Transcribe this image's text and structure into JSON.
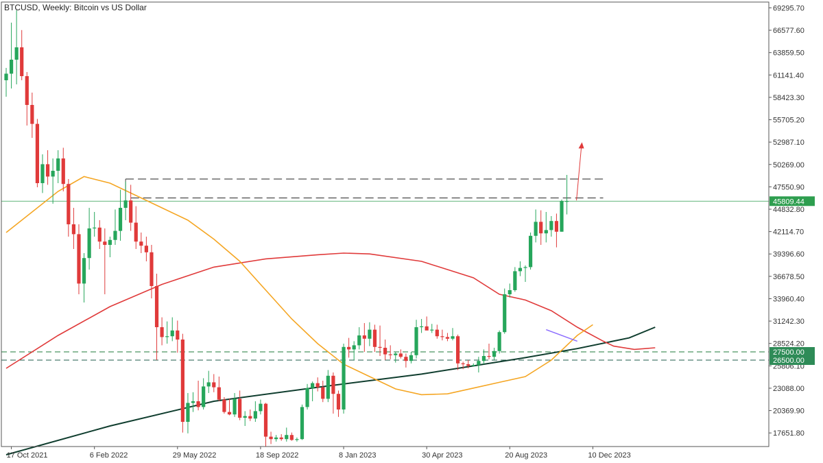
{
  "header": {
    "symbol": "BTCUSD",
    "timeframe": "Weekly:",
    "description": "Bitcoin vs US Dollar"
  },
  "chart_data": {
    "type": "candlestick",
    "ylim": [
      16000,
      70000
    ],
    "y_ticks": [
      "69295.70",
      "66577.60",
      "63859.50",
      "61141.40",
      "58423.30",
      "55705.20",
      "52987.10",
      "50269.00",
      "47550.90",
      "44832.80",
      "42114.70",
      "39396.60",
      "36678.50",
      "33960.40",
      "31242.30",
      "28524.20",
      "25806.10",
      "23088.00",
      "20369.90",
      "17651.80"
    ],
    "x_tick_labels": [
      "17 Oct 2021",
      "6 Feb 2022",
      "29 May 2022",
      "18 Sep 2022",
      "8 Jan 2023",
      "30 Apr 2023",
      "20 Aug 2023",
      "10 Dec 2023"
    ],
    "current_price": "45809.44",
    "levels": [
      {
        "label": "27500.00",
        "value": 27500,
        "color": "#1e7a3a",
        "style": "dashed"
      },
      {
        "label": "26500.00",
        "value": 26500,
        "color": "#1e5a4a",
        "style": "dashed"
      }
    ],
    "resistance_lines": [
      48500,
      46200
    ],
    "colors": {
      "bull": "#26a65b",
      "bear": "#e03a3a",
      "ma_fast": "#f5a623",
      "ma_mid": "#e03a3a",
      "ma_slow": "#0f3d2e",
      "badge_price": "#2e9e4f",
      "badge_level": "#2e8b57",
      "arrow": "#e03a3a",
      "channel": "#8b6cff"
    },
    "candles": [
      [
        60500,
        62000,
        58500,
        61300
      ],
      [
        61300,
        67500,
        59500,
        63000
      ],
      [
        63000,
        69000,
        60000,
        64500
      ],
      [
        64500,
        66600,
        60500,
        61000
      ],
      [
        61000,
        61500,
        55000,
        57500
      ],
      [
        57500,
        59000,
        53500,
        55200
      ],
      [
        55200,
        55800,
        47500,
        48000
      ],
      [
        48000,
        51500,
        46800,
        50300
      ],
      [
        50300,
        52000,
        47800,
        48800
      ],
      [
        48800,
        51000,
        45500,
        49500
      ],
      [
        49500,
        52000,
        48000,
        51000
      ],
      [
        51000,
        52300,
        47000,
        47900
      ],
      [
        47900,
        48500,
        41500,
        43000
      ],
      [
        43000,
        45000,
        40000,
        41800
      ],
      [
        41800,
        43000,
        34500,
        35800
      ],
      [
        35800,
        39500,
        33500,
        38900
      ],
      [
        38900,
        45000,
        37500,
        42500
      ],
      [
        42500,
        44500,
        41500,
        42600
      ],
      [
        42600,
        43500,
        40000,
        40900
      ],
      [
        40900,
        42500,
        34500,
        40500
      ],
      [
        40500,
        41500,
        39000,
        41100
      ],
      [
        41100,
        44800,
        40500,
        42200
      ],
      [
        42200,
        47200,
        41000,
        45000
      ],
      [
        45000,
        48200,
        43500,
        45900
      ],
      [
        45900,
        47800,
        42200,
        43200
      ],
      [
        43200,
        45200,
        40000,
        40900
      ],
      [
        40900,
        42000,
        39500,
        40400
      ],
      [
        40400,
        41500,
        38500,
        39600
      ],
      [
        39600,
        40500,
        34000,
        35500
      ],
      [
        35500,
        37000,
        26500,
        30500
      ],
      [
        30500,
        31700,
        28300,
        29300
      ],
      [
        29300,
        31200,
        28500,
        29400
      ],
      [
        29400,
        31700,
        28800,
        30100
      ],
      [
        30100,
        31300,
        27400,
        29000
      ],
      [
        29000,
        29700,
        17700,
        19000
      ],
      [
        19000,
        22500,
        17600,
        21300
      ],
      [
        21300,
        22600,
        20200,
        21500
      ],
      [
        21500,
        24000,
        20400,
        20800
      ],
      [
        20800,
        24300,
        20500,
        23300
      ],
      [
        23300,
        25200,
        22500,
        23800
      ],
      [
        23800,
        24800,
        22600,
        23200
      ],
      [
        23200,
        24500,
        21500,
        21700
      ],
      [
        21700,
        22000,
        20000,
        20200
      ],
      [
        20200,
        21800,
        19800,
        19900
      ],
      [
        19900,
        22500,
        19600,
        21800
      ],
      [
        21800,
        22800,
        19200,
        19500
      ],
      [
        19500,
        20300,
        18500,
        19700
      ],
      [
        19700,
        20500,
        19100,
        19400
      ],
      [
        19400,
        21500,
        19000,
        20300
      ],
      [
        20300,
        21700,
        19900,
        21200
      ],
      [
        21200,
        21300,
        16000,
        17200
      ],
      [
        17200,
        17800,
        16300,
        16900
      ],
      [
        16900,
        17400,
        16600,
        17100
      ],
      [
        17100,
        17500,
        16700,
        16900
      ],
      [
        16900,
        18300,
        16600,
        17400
      ],
      [
        17400,
        17700,
        16700,
        16800
      ],
      [
        16800,
        17100,
        16600,
        16900
      ],
      [
        16900,
        21100,
        16800,
        20800
      ],
      [
        20800,
        23600,
        20500,
        23100
      ],
      [
        23100,
        23900,
        21500,
        23700
      ],
      [
        23700,
        24400,
        22700,
        23200
      ],
      [
        23200,
        24000,
        21400,
        21800
      ],
      [
        21800,
        25300,
        21400,
        24600
      ],
      [
        24600,
        25000,
        20000,
        22400
      ],
      [
        22400,
        22800,
        19600,
        20500
      ],
      [
        20500,
        28500,
        20000,
        28100
      ],
      [
        28100,
        29200,
        26800,
        27800
      ],
      [
        27800,
        28800,
        26500,
        28300
      ],
      [
        28300,
        30500,
        27800,
        29500
      ],
      [
        29500,
        31000,
        27500,
        29100
      ],
      [
        29100,
        31100,
        28200,
        30200
      ],
      [
        30200,
        30800,
        27500,
        28100
      ],
      [
        28100,
        30700,
        27000,
        28000
      ],
      [
        28000,
        29000,
        26500,
        27200
      ],
      [
        27200,
        28300,
        26600,
        27100
      ],
      [
        27100,
        27500,
        26200,
        27300
      ],
      [
        27300,
        27800,
        26700,
        26900
      ],
      [
        26900,
        27300,
        25600,
        26400
      ],
      [
        26400,
        27500,
        26100,
        27100
      ],
      [
        27100,
        31400,
        26700,
        30500
      ],
      [
        30500,
        31500,
        29800,
        30600
      ],
      [
        30600,
        31800,
        30300,
        30100
      ],
      [
        30100,
        30900,
        29800,
        30200
      ],
      [
        30200,
        30800,
        29100,
        29400
      ],
      [
        29400,
        30200,
        28900,
        29300
      ],
      [
        29300,
        29800,
        28800,
        29100
      ],
      [
        29100,
        30400,
        28900,
        29400
      ],
      [
        29400,
        29600,
        25300,
        26100
      ],
      [
        26100,
        26300,
        25400,
        26000
      ],
      [
        26000,
        26500,
        25500,
        25800
      ],
      [
        25800,
        26100,
        25700,
        25900
      ],
      [
        25900,
        26900,
        25000,
        26400
      ],
      [
        26400,
        27800,
        26000,
        27000
      ],
      [
        27000,
        28500,
        26600,
        26900
      ],
      [
        26900,
        28000,
        26500,
        27600
      ],
      [
        27600,
        30100,
        27300,
        29900
      ],
      [
        29900,
        35200,
        29700,
        34500
      ],
      [
        34500,
        35800,
        34100,
        35000
      ],
      [
        35000,
        37800,
        34800,
        37300
      ],
      [
        37300,
        38500,
        36700,
        37700
      ],
      [
        37700,
        38000,
        36000,
        37800
      ],
      [
        37800,
        42000,
        37500,
        41600
      ],
      [
        41600,
        44800,
        40800,
        43300
      ],
      [
        43300,
        44700,
        40500,
        41900
      ],
      [
        41900,
        44500,
        40800,
        42300
      ],
      [
        42300,
        44000,
        41500,
        43400
      ],
      [
        43400,
        44300,
        40200,
        42100
      ],
      [
        42100,
        46000,
        42100,
        45800
      ],
      [
        45800,
        49000,
        44200,
        45810
      ]
    ],
    "ma_fast": [
      [
        0,
        42000
      ],
      [
        10,
        47000
      ],
      [
        15,
        48800
      ],
      [
        20,
        48000
      ],
      [
        25,
        46500
      ],
      [
        30,
        45000
      ],
      [
        35,
        43500
      ],
      [
        40,
        41200
      ],
      [
        45,
        38500
      ],
      [
        50,
        35000
      ],
      [
        55,
        31500
      ],
      [
        60,
        28500
      ],
      [
        65,
        26000
      ],
      [
        70,
        24500
      ],
      [
        75,
        23000
      ],
      [
        80,
        22300
      ],
      [
        85,
        22400
      ],
      [
        90,
        23100
      ],
      [
        95,
        23800
      ],
      [
        100,
        24500
      ],
      [
        105,
        26500
      ],
      [
        110,
        29500
      ],
      [
        113,
        30800
      ]
    ],
    "ma_mid": [
      [
        0,
        25500
      ],
      [
        10,
        29500
      ],
      [
        20,
        33000
      ],
      [
        30,
        35700
      ],
      [
        40,
        37800
      ],
      [
        50,
        38800
      ],
      [
        60,
        39300
      ],
      [
        65,
        39500
      ],
      [
        70,
        39400
      ],
      [
        80,
        38500
      ],
      [
        90,
        36500
      ],
      [
        95,
        34500
      ],
      [
        100,
        33800
      ],
      [
        105,
        32500
      ],
      [
        110,
        30500
      ],
      [
        115,
        28800
      ],
      [
        117,
        28200
      ],
      [
        121,
        27800
      ],
      [
        125,
        28000
      ]
    ],
    "ma_slow": [
      [
        0,
        15000
      ],
      [
        20,
        18500
      ],
      [
        40,
        21500
      ],
      [
        60,
        23200
      ],
      [
        80,
        24800
      ],
      [
        90,
        25800
      ],
      [
        100,
        26800
      ],
      [
        110,
        27900
      ],
      [
        120,
        29200
      ],
      [
        125,
        30500
      ]
    ],
    "channel": [
      [
        104,
        30200
      ],
      [
        110,
        28800
      ]
    ]
  }
}
